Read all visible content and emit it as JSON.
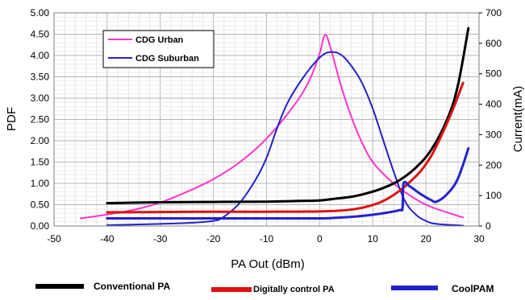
{
  "chart_data": {
    "type": "line",
    "xlabel": "PA Out (dBm)",
    "ylabel": "PDF",
    "y2label": "Current(mA)",
    "xlim": [
      -50,
      30
    ],
    "ylim": [
      0,
      5
    ],
    "y2lim": [
      0,
      700
    ],
    "x_ticks": [
      "-50",
      "-40",
      "-30",
      "-20",
      "-10",
      "0",
      "10",
      "20",
      "30"
    ],
    "y_ticks": [
      "0.00",
      "0.50",
      "1.00",
      "1.50",
      "2.00",
      "2.50",
      "3.00",
      "3.50",
      "4.00",
      "4.50",
      "5.00"
    ],
    "y2_ticks": [
      "0",
      "100",
      "200",
      "300",
      "400",
      "500",
      "600",
      "700"
    ],
    "grid": true,
    "pdf_legend": {
      "placement": "top-left",
      "items": [
        {
          "name": "CDG Urban",
          "color": "#ff33cc"
        },
        {
          "name": "CDG Suburban",
          "color": "#2222cc"
        }
      ]
    },
    "series": [
      {
        "name": "CDG Urban",
        "axis": "left",
        "color": "#ff33cc",
        "points": [
          [
            -45,
            0.18
          ],
          [
            -40,
            0.27
          ],
          [
            -35,
            0.38
          ],
          [
            -30,
            0.55
          ],
          [
            -25,
            0.8
          ],
          [
            -20,
            1.1
          ],
          [
            -15,
            1.5
          ],
          [
            -10,
            2.05
          ],
          [
            -5,
            2.8
          ],
          [
            -2,
            3.4
          ],
          [
            0,
            4.05
          ],
          [
            1,
            4.48
          ],
          [
            2,
            4.2
          ],
          [
            4,
            3.3
          ],
          [
            6,
            2.55
          ],
          [
            8,
            1.95
          ],
          [
            10,
            1.5
          ],
          [
            13,
            1.1
          ],
          [
            16,
            0.8
          ],
          [
            20,
            0.5
          ],
          [
            24,
            0.32
          ],
          [
            27,
            0.2
          ]
        ]
      },
      {
        "name": "CDG Suburban",
        "axis": "left",
        "color": "#2222cc",
        "points": [
          [
            -40,
            0.02
          ],
          [
            -30,
            0.05
          ],
          [
            -25,
            0.07
          ],
          [
            -20,
            0.12
          ],
          [
            -18,
            0.22
          ],
          [
            -15,
            0.55
          ],
          [
            -12,
            1.1
          ],
          [
            -10,
            1.6
          ],
          [
            -8,
            2.3
          ],
          [
            -6,
            2.9
          ],
          [
            -3,
            3.5
          ],
          [
            0,
            3.95
          ],
          [
            2,
            4.08
          ],
          [
            4,
            4.02
          ],
          [
            6,
            3.75
          ],
          [
            8,
            3.35
          ],
          [
            10,
            2.75
          ],
          [
            12,
            2.0
          ],
          [
            14,
            1.25
          ],
          [
            16,
            0.6
          ],
          [
            18,
            0.28
          ],
          [
            20,
            0.12
          ],
          [
            22,
            0.05
          ],
          [
            27,
            0.01
          ]
        ]
      },
      {
        "name": "Conventional PA",
        "axis": "right",
        "color": "#000000",
        "points": [
          [
            -40,
            75
          ],
          [
            -30,
            78
          ],
          [
            -20,
            79
          ],
          [
            -10,
            80
          ],
          [
            -5,
            82
          ],
          [
            0,
            84
          ],
          [
            3,
            90
          ],
          [
            6,
            96
          ],
          [
            9,
            108
          ],
          [
            12,
            125
          ],
          [
            15,
            150
          ],
          [
            18,
            190
          ],
          [
            21,
            250
          ],
          [
            24,
            350
          ],
          [
            26,
            460
          ],
          [
            28,
            650
          ]
        ]
      },
      {
        "name": "Digitally control PA",
        "axis": "right",
        "color": "#dd1111",
        "points": [
          [
            -40,
            45
          ],
          [
            -30,
            46
          ],
          [
            -20,
            47
          ],
          [
            -10,
            47
          ],
          [
            0,
            48
          ],
          [
            5,
            52
          ],
          [
            8,
            60
          ],
          [
            11,
            75
          ],
          [
            13,
            92
          ],
          [
            15,
            115
          ],
          [
            17,
            145
          ],
          [
            19,
            180
          ],
          [
            21,
            230
          ],
          [
            23,
            300
          ],
          [
            25,
            380
          ],
          [
            27,
            470
          ]
        ]
      },
      {
        "name": "CoolPAM",
        "axis": "right",
        "color": "#2222cc",
        "points": [
          [
            -40,
            25
          ],
          [
            -30,
            25
          ],
          [
            -20,
            25
          ],
          [
            -10,
            25
          ],
          [
            0,
            25
          ],
          [
            3,
            27
          ],
          [
            6,
            30
          ],
          [
            9,
            35
          ],
          [
            12,
            42
          ],
          [
            15,
            52
          ],
          [
            15.6,
            60
          ],
          [
            15.8,
            140
          ],
          [
            17,
            130
          ],
          [
            19,
            105
          ],
          [
            21,
            85
          ],
          [
            22,
            80
          ],
          [
            24,
            105
          ],
          [
            26,
            155
          ],
          [
            28,
            255
          ]
        ]
      }
    ],
    "bottom_legend": [
      {
        "name": "Conventional PA",
        "color": "#000000"
      },
      {
        "name": "Digitally control PA",
        "color": "#dd1111"
      },
      {
        "name": "CoolPAM",
        "color": "#2222cc"
      }
    ]
  }
}
